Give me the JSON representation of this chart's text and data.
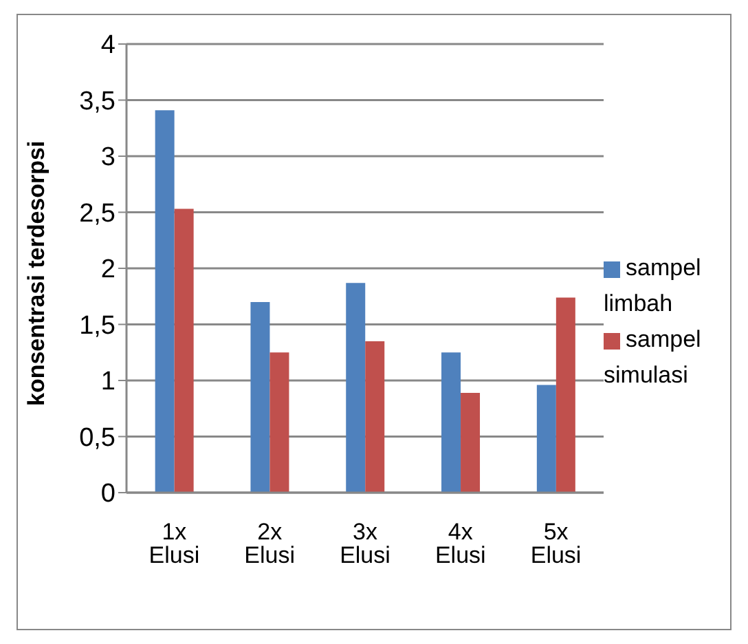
{
  "chart_data": {
    "type": "bar",
    "ylabel": "konsentrasi terdesorpsi",
    "categories": [
      "1x Elusi",
      "2x Elusi",
      "3x Elusi",
      "4x Elusi",
      "5x Elusi"
    ],
    "series": [
      {
        "name": "sampel limbah",
        "color": "#4f81bd",
        "values": [
          3.41,
          1.7,
          1.87,
          1.25,
          0.96
        ]
      },
      {
        "name": "sampel simulasi",
        "color": "#c0504d",
        "values": [
          2.53,
          1.25,
          1.35,
          0.89,
          1.74
        ]
      }
    ],
    "ylim": [
      0,
      4
    ],
    "yticks": [
      0,
      {
        "value": 0.5,
        "label": "0,5"
      },
      1,
      {
        "value": 1.5,
        "label": "1,5"
      },
      2,
      {
        "value": 2.5,
        "label": "2,5"
      },
      3,
      {
        "value": 3.5,
        "label": "3,5"
      },
      4
    ],
    "grid": "y",
    "legend": "right"
  }
}
